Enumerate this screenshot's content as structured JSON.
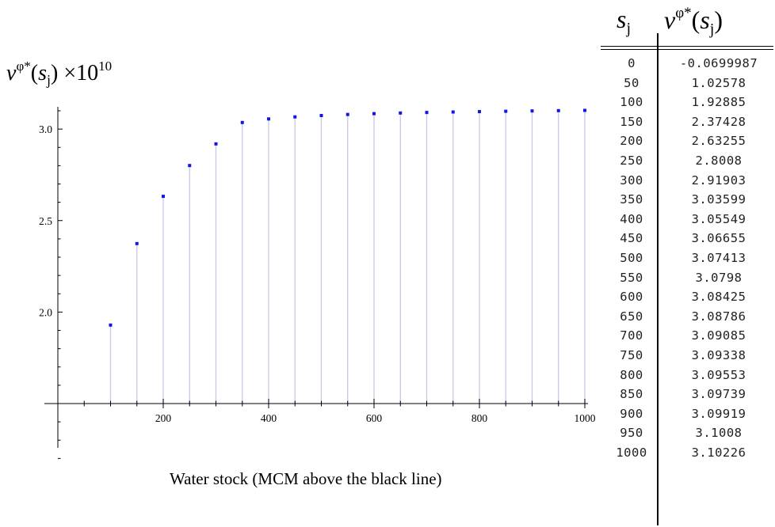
{
  "y_label": {
    "var": "v",
    "sup": "φ*",
    "open": "(",
    "arg": "s",
    "sub": "j",
    "close": ")",
    "scale": " ×10",
    "scale_exp": "10"
  },
  "x_label": "Water stock (MCM above the black line)",
  "table": {
    "header_s": {
      "var": "s",
      "sub": "j"
    },
    "header_v": {
      "var": "v",
      "sup": "φ*",
      "open": "(",
      "arg": "s",
      "sub": "j",
      "close": ")"
    },
    "rows": [
      {
        "s": "0",
        "v": "-0.0699987"
      },
      {
        "s": "50",
        "v": "1.02578"
      },
      {
        "s": "100",
        "v": "1.92885"
      },
      {
        "s": "150",
        "v": "2.37428"
      },
      {
        "s": "200",
        "v": "2.63255"
      },
      {
        "s": "250",
        "v": "2.8008"
      },
      {
        "s": "300",
        "v": "2.91903"
      },
      {
        "s": "350",
        "v": "3.03599"
      },
      {
        "s": "400",
        "v": "3.05549"
      },
      {
        "s": "450",
        "v": "3.06655"
      },
      {
        "s": "500",
        "v": "3.07413"
      },
      {
        "s": "550",
        "v": "3.0798"
      },
      {
        "s": "600",
        "v": "3.08425"
      },
      {
        "s": "650",
        "v": "3.08786"
      },
      {
        "s": "700",
        "v": "3.09085"
      },
      {
        "s": "750",
        "v": "3.09338"
      },
      {
        "s": "800",
        "v": "3.09553"
      },
      {
        "s": "850",
        "v": "3.09739"
      },
      {
        "s": "900",
        "v": "3.09919"
      },
      {
        "s": "950",
        "v": "3.1008"
      },
      {
        "s": "1000",
        "v": "3.10226"
      }
    ]
  },
  "chart_data": {
    "type": "scatter",
    "style": "stem",
    "x": [
      100,
      150,
      200,
      250,
      300,
      350,
      400,
      450,
      500,
      550,
      600,
      650,
      700,
      750,
      800,
      850,
      900,
      950,
      1000
    ],
    "y": [
      1.92885,
      2.37428,
      2.63255,
      2.8008,
      2.91903,
      3.03599,
      3.05549,
      3.06655,
      3.07413,
      3.0798,
      3.08425,
      3.08786,
      3.09085,
      3.09338,
      3.09553,
      3.09739,
      3.09919,
      3.1008,
      3.10226
    ],
    "x_ticks": [
      "200",
      "400",
      "600",
      "800",
      "1000"
    ],
    "y_ticks": [
      "2.0",
      "2.5",
      "3.0"
    ],
    "xlim": [
      0,
      1000
    ],
    "ylim": [
      1.5,
      3.1
    ],
    "axes_origin": [
      0,
      1.5
    ],
    "grid": false,
    "marker_color": "#1414e6",
    "stem_color": "#c8c8e6"
  }
}
